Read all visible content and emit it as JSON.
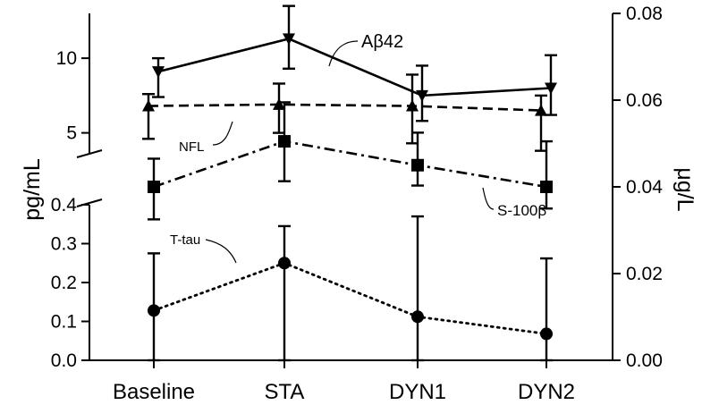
{
  "chart_data": {
    "type": "line",
    "categories": [
      "Baseline",
      "STA",
      "DYN1",
      "DYN2"
    ],
    "left_axis": {
      "title": "pg/mL",
      "upper_segment": {
        "range": [
          3.6,
          13.0
        ],
        "ticks": [
          5,
          10
        ]
      },
      "lower_segment": {
        "range": [
          0,
          0.4
        ],
        "ticks": [
          "0.0",
          "0.1",
          "0.2",
          "0.3",
          "0.4"
        ]
      },
      "broken": true
    },
    "right_axis": {
      "title": "μg/L",
      "range": [
        0,
        0.08
      ],
      "ticks": [
        "0.00",
        "0.02",
        "0.04",
        "0.06",
        "0.08"
      ]
    },
    "series": [
      {
        "name": "Aβ42",
        "axis": "left-upper",
        "style": "solid",
        "marker": "triangle-down",
        "values": [
          9.1,
          11.3,
          7.5,
          8.0
        ],
        "err_hi": [
          10.0,
          13.5,
          9.5,
          10.2
        ],
        "err_lo": [
          7.4,
          9.3,
          5.8,
          6.2
        ]
      },
      {
        "name": "NFL",
        "axis": "left-upper",
        "style": "dashed",
        "marker": "triangle-up",
        "values": [
          6.8,
          6.9,
          6.8,
          6.5
        ],
        "err_hi": [
          7.6,
          8.3,
          8.9,
          7.5
        ],
        "err_lo": [
          4.6,
          5.0,
          4.3,
          3.8
        ]
      },
      {
        "name": "S-100β",
        "axis": "right",
        "style": "dash-dot",
        "marker": "square",
        "values": [
          0.04,
          0.0505,
          0.045,
          0.04
        ],
        "err_hi": [
          0.0465,
          0.0595,
          0.0525,
          0.0505
        ],
        "err_lo": [
          0.0325,
          0.0413,
          0.0403,
          0.035
        ]
      },
      {
        "name": "T-tau",
        "axis": "left-lower",
        "style": "dotted",
        "marker": "circle",
        "values": [
          0.128,
          0.25,
          0.112,
          0.068
        ],
        "err_hi": [
          0.275,
          0.345,
          0.37,
          0.262
        ],
        "err_lo": [
          0,
          0,
          0,
          0
        ]
      }
    ]
  }
}
